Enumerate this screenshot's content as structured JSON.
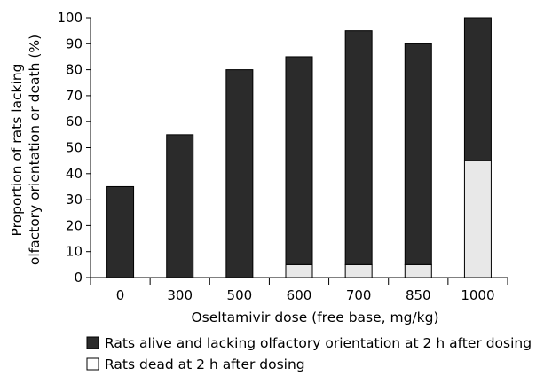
{
  "chart_data": {
    "type": "bar",
    "stacked": true,
    "categories": [
      "0",
      "300",
      "500",
      "600",
      "700",
      "850",
      "1000"
    ],
    "series": [
      {
        "name": "Rats dead at 2 h after dosing",
        "color": "#e8e8e8",
        "values": [
          0,
          0,
          0,
          5,
          5,
          5,
          45
        ]
      },
      {
        "name": "Rats alive and lacking olfactory orientation at 2 h after dosing",
        "color": "#2b2b2b",
        "values": [
          35,
          55,
          80,
          80,
          90,
          85,
          55
        ]
      }
    ],
    "xlabel": "Oseltamivir dose (free base, mg/kg)",
    "ylabel_lines": [
      "Proportion of rats lacking",
      "olfactory orientation or death (%)"
    ],
    "ylim": [
      0,
      100
    ],
    "yticks": [
      0,
      10,
      20,
      30,
      40,
      50,
      60,
      70,
      80,
      90,
      100
    ],
    "grid": false,
    "legend_position": "bottom"
  }
}
